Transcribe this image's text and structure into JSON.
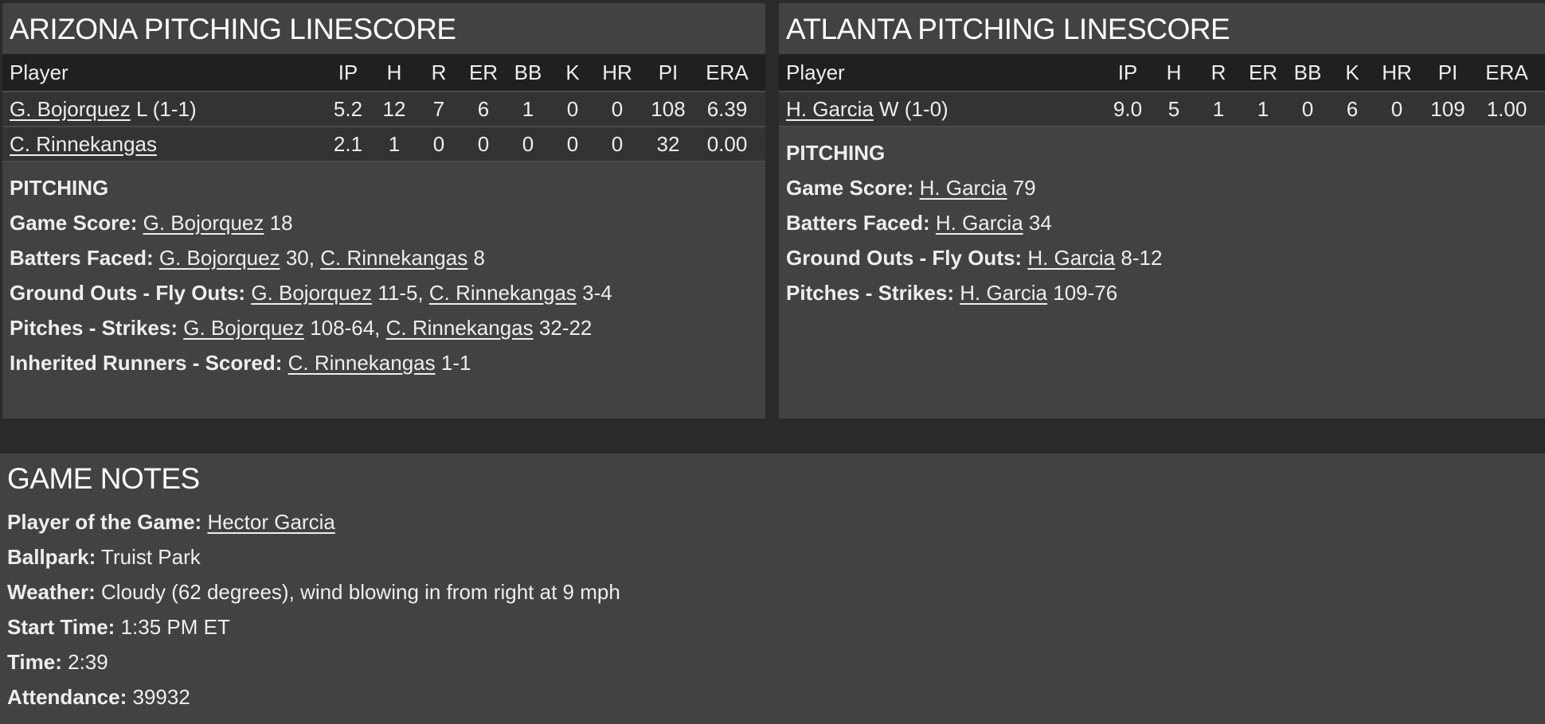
{
  "columns": [
    "Player",
    "IP",
    "H",
    "R",
    "ER",
    "BB",
    "K",
    "HR",
    "PI",
    "ERA"
  ],
  "arizona": {
    "title": "ARIZONA PITCHING LINESCORE",
    "rows": [
      {
        "player": "G. Bojorquez",
        "decision": "L (1-1)",
        "stats": [
          "5.2",
          "12",
          "7",
          "6",
          "1",
          "0",
          "0",
          "108",
          "6.39"
        ]
      },
      {
        "player": "C. Rinnekangas",
        "decision": "",
        "stats": [
          "2.1",
          "1",
          "0",
          "0",
          "0",
          "0",
          "0",
          "32",
          "0.00"
        ]
      }
    ],
    "section": "PITCHING",
    "game_score": {
      "label": "Game Score:",
      "p1": "G. Bojorquez",
      "v1": "18"
    },
    "batters_faced": {
      "label": "Batters Faced:",
      "p1": "G. Bojorquez",
      "v1": "30,",
      "p2": "C. Rinnekangas",
      "v2": "8"
    },
    "go_fo": {
      "label": "Ground Outs - Fly Outs:",
      "p1": "G. Bojorquez",
      "v1": "11-5,",
      "p2": "C. Rinnekangas",
      "v2": "3-4"
    },
    "pitches_strikes": {
      "label": "Pitches - Strikes:",
      "p1": "G. Bojorquez",
      "v1": "108-64,",
      "p2": "C. Rinnekangas",
      "v2": "32-22"
    },
    "inherited": {
      "label": "Inherited Runners - Scored:",
      "p1": "C. Rinnekangas",
      "v1": "1-1"
    }
  },
  "atlanta": {
    "title": "ATLANTA PITCHING LINESCORE",
    "rows": [
      {
        "player": "H. Garcia",
        "decision": "W (1-0)",
        "stats": [
          "9.0",
          "5",
          "1",
          "1",
          "0",
          "6",
          "0",
          "109",
          "1.00"
        ]
      }
    ],
    "section": "PITCHING",
    "game_score": {
      "label": "Game Score:",
      "p1": "H. Garcia",
      "v1": "79"
    },
    "batters_faced": {
      "label": "Batters Faced:",
      "p1": "H. Garcia",
      "v1": "34"
    },
    "go_fo": {
      "label": "Ground Outs - Fly Outs:",
      "p1": "H. Garcia",
      "v1": "8-12"
    },
    "pitches_strikes": {
      "label": "Pitches - Strikes:",
      "p1": "H. Garcia",
      "v1": "109-76"
    }
  },
  "notes": {
    "title": "GAME NOTES",
    "player_of_game": {
      "label": "Player of the Game:",
      "value": "Hector Garcia"
    },
    "ballpark": {
      "label": "Ballpark:",
      "value": "Truist Park"
    },
    "weather": {
      "label": "Weather:",
      "value": "Cloudy (62 degrees), wind blowing in from right at 9 mph"
    },
    "start_time": {
      "label": "Start Time:",
      "value": "1:35 PM ET"
    },
    "time": {
      "label": "Time:",
      "value": "2:39"
    },
    "attendance": {
      "label": "Attendance:",
      "value": "39932"
    }
  }
}
